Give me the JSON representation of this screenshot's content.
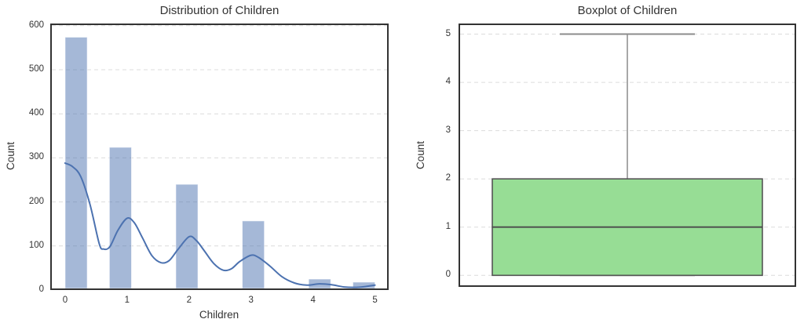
{
  "figure": {
    "background": "#ffffff",
    "text_color": "#333333",
    "spine_color": "#333333",
    "grid_color": "#dcdcdc"
  },
  "chart_data": [
    {
      "type": "bar",
      "subtype": "histogram_with_kde",
      "title": "Distribution of Children",
      "xlabel": "Children",
      "ylabel": "Count",
      "categories": [
        0,
        1,
        2,
        3,
        4,
        5
      ],
      "values": [
        574,
        324,
        240,
        157,
        25,
        18
      ],
      "bin_lefts": [
        0.0,
        0.7143,
        1.7857,
        2.8571,
        3.9286,
        4.6429
      ],
      "bin_width": 0.3571,
      "xticks": [
        0,
        1,
        2,
        3,
        4,
        5
      ],
      "yticks": [
        0,
        100,
        200,
        300,
        400,
        500,
        600
      ],
      "xlim": [
        -0.24,
        5.22
      ],
      "ylim": [
        0,
        605
      ],
      "grid": "horizontal-dashed",
      "legend": "none",
      "bar_color": "rgba(76,114,176,0.5)",
      "bar_edge_color": "rgba(255,255,255,0.65)",
      "kde_color": "#4c72b0",
      "kde_points": [
        [
          0.0,
          288
        ],
        [
          0.12,
          280
        ],
        [
          0.25,
          258
        ],
        [
          0.4,
          195
        ],
        [
          0.55,
          105
        ],
        [
          0.62,
          93
        ],
        [
          0.72,
          98
        ],
        [
          0.85,
          135
        ],
        [
          1.0,
          163
        ],
        [
          1.12,
          152
        ],
        [
          1.25,
          118
        ],
        [
          1.4,
          78
        ],
        [
          1.55,
          62
        ],
        [
          1.68,
          67
        ],
        [
          1.82,
          92
        ],
        [
          2.0,
          121
        ],
        [
          2.12,
          112
        ],
        [
          2.25,
          88
        ],
        [
          2.4,
          60
        ],
        [
          2.55,
          45
        ],
        [
          2.68,
          48
        ],
        [
          2.82,
          65
        ],
        [
          3.0,
          79
        ],
        [
          3.12,
          74
        ],
        [
          3.3,
          55
        ],
        [
          3.5,
          30
        ],
        [
          3.7,
          16
        ],
        [
          3.9,
          11
        ],
        [
          4.1,
          14
        ],
        [
          4.3,
          12
        ],
        [
          4.5,
          7
        ],
        [
          4.7,
          6
        ],
        [
          4.85,
          8
        ],
        [
          5.0,
          11
        ]
      ]
    },
    {
      "type": "box",
      "title": "Boxplot of Children",
      "xlabel": "",
      "ylabel": "Count",
      "stats": {
        "min": 0,
        "q1": 0,
        "median": 1,
        "q3": 2,
        "max": 5
      },
      "yticks": [
        0,
        1,
        2,
        3,
        4,
        5
      ],
      "ylim": [
        -0.24,
        5.22
      ],
      "grid": "horizontal-dashed",
      "legend": "none",
      "box_color": "#97dd95",
      "box_edge_color": "#555555",
      "median_color": "#4a4a4a",
      "whisker_color": "#8c8c8c"
    }
  ]
}
